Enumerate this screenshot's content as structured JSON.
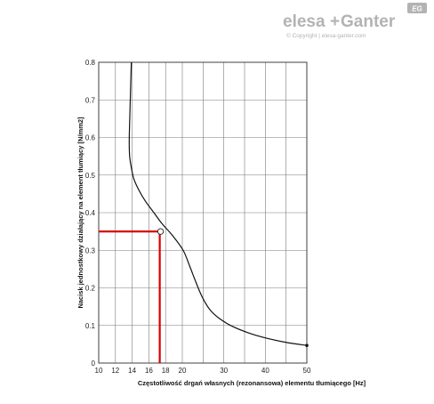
{
  "logo": {
    "brand_left": "elesa",
    "brand_plus": "+",
    "brand_right": "Ganter",
    "badge": "EG",
    "copyright": "© Copyright | elesa-ganter.com",
    "color": "#b3b3b3"
  },
  "chart_data": {
    "type": "line",
    "title": "",
    "xlabel": "Częstotliwość drgań własnych (rezonansowa) elementu tłumiącego [Hz]",
    "ylabel": "Nacisk jednostkowy działający na element tłumiący [N/mm2]",
    "xlim": [
      10,
      50
    ],
    "ylim": [
      0,
      0.8
    ],
    "x_ticks": [
      10,
      12,
      14,
      16,
      18,
      20,
      30,
      40,
      50
    ],
    "x_tick_labels": [
      "10",
      "12",
      "14",
      "16",
      "18",
      "20",
      "30",
      "40",
      "50"
    ],
    "x_grid": [
      10,
      12,
      14,
      16,
      18,
      20,
      25,
      30,
      35,
      40,
      45,
      50
    ],
    "y_ticks": [
      0,
      0.1,
      0.2,
      0.3,
      0.4,
      0.5,
      0.6,
      0.7,
      0.8
    ],
    "y_tick_labels": [
      "0",
      "0.1",
      "0.2",
      "0.3",
      "0.4",
      "0.5",
      "0.6",
      "0.7",
      "0.8"
    ],
    "grid": true,
    "series": [
      {
        "x": [
          13.9,
          13.8,
          13.7,
          13.65,
          13.7,
          13.9,
          14.2,
          14.8,
          15.6,
          16.6,
          17.6,
          18.8,
          20.2,
          21.7,
          23.1,
          24.2,
          25.3,
          26.8,
          29.0,
          32.0,
          36.0,
          40.0,
          45.0,
          50.0
        ],
        "y": [
          0.8,
          0.72,
          0.64,
          0.59,
          0.55,
          0.52,
          0.49,
          0.46,
          0.43,
          0.4,
          0.37,
          0.34,
          0.3,
          0.26,
          0.22,
          0.19,
          0.165,
          0.14,
          0.118,
          0.098,
          0.08,
          0.067,
          0.055,
          0.047
        ],
        "color": "#111111",
        "end_marker": true
      }
    ],
    "highlight": {
      "x": 17.3,
      "y": 0.35,
      "color": "#d90000"
    }
  }
}
